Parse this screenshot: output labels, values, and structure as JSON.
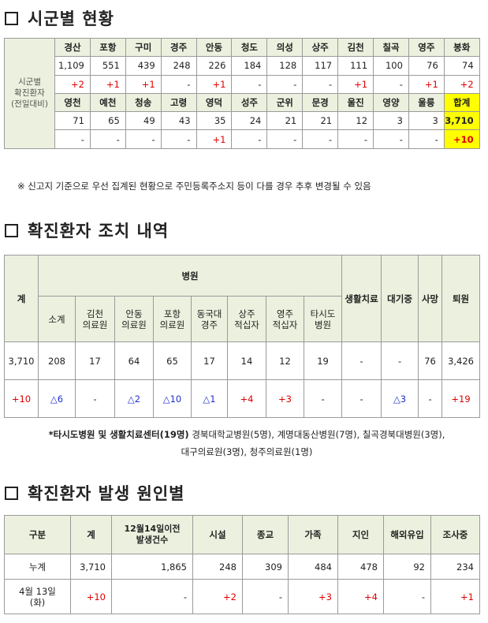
{
  "sections": {
    "s1": "시군별 현황",
    "s2": "확진환자 조치 내역",
    "s3": "확진환자 발생 원인별"
  },
  "t1": {
    "side_label": "시군별\n확진환자\n(전일대비)",
    "row1_headers": [
      "경산",
      "포항",
      "구미",
      "경주",
      "안동",
      "청도",
      "의성",
      "상주",
      "김천",
      "칠곡",
      "영주",
      "봉화"
    ],
    "row1_values": [
      "1,109",
      "551",
      "439",
      "248",
      "226",
      "184",
      "128",
      "117",
      "111",
      "100",
      "76",
      "74"
    ],
    "row1_changes": [
      "+2",
      "+1",
      "+1",
      "-",
      "+1",
      "-",
      "-",
      "-",
      "+1",
      "-",
      "+1",
      "+2"
    ],
    "row2_headers": [
      "영천",
      "예천",
      "청송",
      "고령",
      "영덕",
      "성주",
      "군위",
      "문경",
      "울진",
      "영양",
      "울릉",
      "합계"
    ],
    "row2_values": [
      "71",
      "65",
      "49",
      "43",
      "35",
      "24",
      "21",
      "21",
      "12",
      "3",
      "3",
      "3,710"
    ],
    "row2_changes": [
      "-",
      "-",
      "-",
      "-",
      "+1",
      "-",
      "-",
      "-",
      "-",
      "-",
      "-",
      "+10"
    ]
  },
  "note1": "※ 신고지 기준으로 우선 집계된 현황으로 주민등록주소지 등이 다를 경우 추후 변경될 수 있음",
  "t2": {
    "h_total": "계",
    "h_hospital": "병원",
    "h_home": "생활치료",
    "h_wait": "대기중",
    "h_death": "사망",
    "h_discharge": "퇴원",
    "sub": [
      "소계",
      "김천\n의료원",
      "안동\n의료원",
      "포항\n의료원",
      "동국대\n경주",
      "상주\n적십자",
      "영주\n적십자",
      "타시도\n병원"
    ],
    "row1": [
      "3,710",
      "208",
      "17",
      "64",
      "65",
      "17",
      "14",
      "12",
      "19",
      "-",
      "-",
      "76",
      "3,426"
    ],
    "row2": [
      "+10",
      "△6",
      "-",
      "△2",
      "△10",
      "△1",
      "+4",
      "+3",
      "-",
      "-",
      "△3",
      "-",
      "+19"
    ]
  },
  "note2_line1_bold": "*타시도병원 및 생활치료센터(19명)",
  "note2_line1_rest": " 경북대학교병원(5명), 계명대동산병원(7명), 칠곡경북대병원(3명),",
  "note2_line2": "대구의료원(3명), 청주의료원(1명)",
  "t3": {
    "headers": [
      "구분",
      "계",
      "12월14일이전\n발생건수",
      "시설",
      "종교",
      "가족",
      "지인",
      "해외유입",
      "조사중"
    ],
    "row1": [
      "누계",
      "3,710",
      "1,865",
      "248",
      "309",
      "484",
      "478",
      "92",
      "234"
    ],
    "row2": [
      "4월 13일\n(화)",
      "+10",
      "-",
      "+2",
      "-",
      "+3",
      "+4",
      "-",
      "+1"
    ]
  }
}
